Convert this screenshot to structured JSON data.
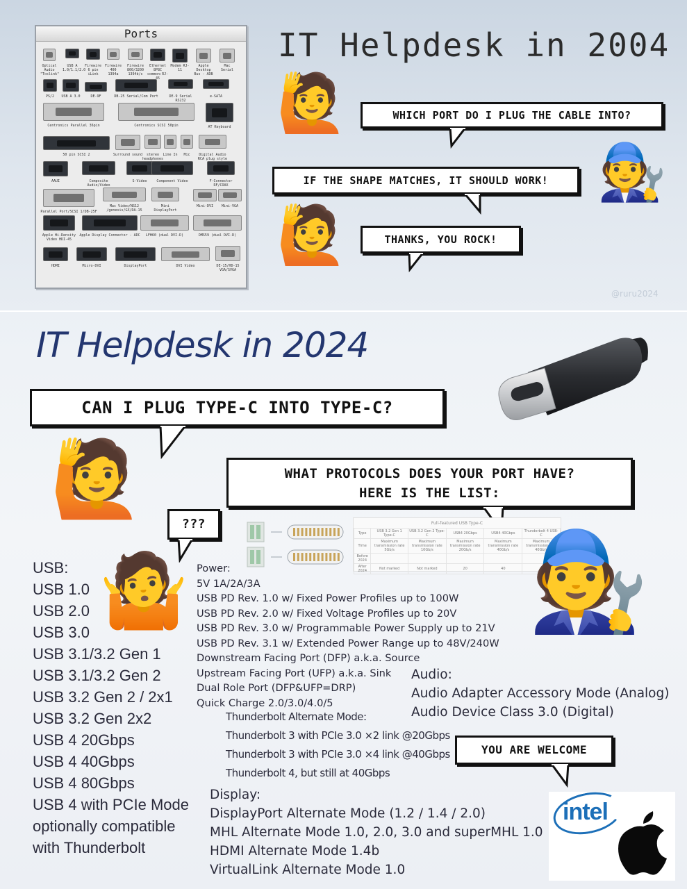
{
  "section_2004": {
    "title": "IT Helpdesk in 2004",
    "ports_panel": {
      "title": "Ports",
      "ports": [
        {
          "label": "Optical Audio \"Toslink\""
        },
        {
          "label": "USB A 1.0/1.1/2.0"
        },
        {
          "label": "Firewire 6 pin iLink"
        },
        {
          "label": "Firewire 400 1394a"
        },
        {
          "label": "Firewire 800/3200 1394b/c"
        },
        {
          "label": "Ethernet 8P8C common:RJ-45"
        },
        {
          "label": "Modem RJ-11"
        },
        {
          "label": "Apple Desktop Bus - ADB"
        },
        {
          "label": "Mac Serial"
        },
        {
          "label": "PS/2"
        },
        {
          "label": "USB A 3.0"
        },
        {
          "label": "DE-9F"
        },
        {
          "label": "DB-25 Serial/Com Port"
        },
        {
          "label": "DE-9 Serial RS232"
        },
        {
          "label": "e-SATA"
        },
        {
          "label": "Centronics Parallel 36pin"
        },
        {
          "label": "Centronics SCSI 50pin"
        },
        {
          "label": "AT Keyboard"
        },
        {
          "label": "50 pin SCSI 2"
        },
        {
          "label": "Surround sound"
        },
        {
          "label": "stereo headphones"
        },
        {
          "label": "Line In"
        },
        {
          "label": "Mic"
        },
        {
          "label": "Digital Audio RCA plug style"
        },
        {
          "label": "AAUI"
        },
        {
          "label": "Composite Audio/Video"
        },
        {
          "label": "S-Video"
        },
        {
          "label": "Component Video"
        },
        {
          "label": "F-Connector RF/COAX"
        },
        {
          "label": "Parallel Port/SCSI 1/DB-25F"
        },
        {
          "label": "Mac Video/NS12 /genesis/GX/DA-15"
        },
        {
          "label": "Mini DisplayPort"
        },
        {
          "label": "Mini-DVI"
        },
        {
          "label": "Mini-VGA"
        },
        {
          "label": "Apple Hi-Density Video HDI-45"
        },
        {
          "label": "Apple Display Connector - ADC"
        },
        {
          "label": "LFH60 (dual DVI-D)"
        },
        {
          "label": "DMS59 (dual DVI-D)"
        },
        {
          "label": "HDMI"
        },
        {
          "label": "Micro-DVI"
        },
        {
          "label": "DisplayPort"
        },
        {
          "label": "DVI Video"
        },
        {
          "label": "DE-15/HD-15 VGA/SVGA"
        }
      ]
    },
    "bubbles": {
      "q1": "WHICH PORT DO I PLUG THE CABLE INTO?",
      "a1": "IF THE SHAPE MATCHES, IT SHOULD WORK!",
      "q2": "THANKS, YOU ROCK!"
    },
    "watermark": "@ruru2024",
    "emoji": {
      "raise": "🙋",
      "mechanic": "🧑‍🔧"
    }
  },
  "section_2024": {
    "title": "IT Helpdesk in 2024",
    "bubbles": {
      "q1": "CAN I PLUG TYPE-C INTO TYPE-C?",
      "a1_line1": "WHAT PROTOCOLS DOES YOUR PORT HAVE?",
      "a1_line2": "HERE IS THE LIST:",
      "confused": "???",
      "welcome": "YOU ARE WELCOME"
    },
    "emoji": {
      "raise": "🙋",
      "shrug": "🤷",
      "mechanic": "🧑‍🔧"
    },
    "usb_list": [
      "USB:",
      "USB 1.0",
      "USB 2.0",
      "USB 3.0",
      "USB 3.1/3.2 Gen 1",
      "USB 3.1/3.2 Gen 2",
      "USB 3.2 Gen 2 / 2x1",
      "USB 3.2 Gen 2x2",
      "USB 4 20Gbps",
      "USB 4 40Gbps",
      "USB 4 80Gbps",
      "USB 4 with PCIe Mode",
      "optionally compatible",
      "with Thunderbolt"
    ],
    "power_list": [
      "Power:",
      "5V 1A/2A/3A",
      "USB PD Rev. 1.0 w/ Fixed Power Profiles up to 100W",
      "USB PD Rev. 2.0 w/ Fixed Voltage Profiles up to 20V",
      "USB PD Rev. 3.0 w/ Programmable Power Supply up to 21V",
      "USB PD Rev. 3.1 w/ Extended Power Range up to 48V/240W",
      "Downstream Facing Port (DFP) a.k.a. Source",
      "Upstream Facing Port (UFP) a.k.a. Sink",
      "Dual Role Port (DFP&UFP=DRP)",
      "Quick Charge 2.0/3.0/4.0/5"
    ],
    "thunderbolt_list": [
      "Thunderbolt Alternate Mode:",
      "Thunderbolt 3 with PCIe 3.0 ×2 link @20Gbps",
      "Thunderbolt 3 with PCIe 3.0 ×4 link @40Gbps",
      "Thunderbolt 4, but still at 40Gbps"
    ],
    "display_list": [
      "Display:",
      "DisplayPort Alternate Mode (1.2 / 1.4 / 2.0)",
      "MHL Alternate Mode 1.0, 2.0, 3.0 and superMHL 1.0",
      "HDMI Alternate Mode 1.4b",
      "VirtualLink Alternate Mode 1.0"
    ],
    "audio_list": [
      "Audio:",
      "Audio Adapter Accessory Mode (Analog)",
      "Audio Device Class 3.0 (Digital)"
    ],
    "usb_table": {
      "title": "Full-featured USB Type-C",
      "headers": [
        "Type",
        "USB 3.2 Gen 1 Type-C",
        "USB 3.2 Gen 2 Type-C",
        "USB4 20Gbps",
        "USB4 40Gbps",
        "Thunderbolt 4 USB-C"
      ],
      "rows": [
        [
          "Time",
          "Maximum transmission rate 5Gb/s",
          "Maximum transmission rate 10Gb/s",
          "Maximum transmission rate 20Gb/s",
          "Maximum transmission rate 40Gb/s",
          "Maximum transmission rate 40Gb/s"
        ],
        [
          "Before 2024",
          "",
          "",
          "",
          "",
          ""
        ],
        [
          "After 2024",
          "Not marked",
          "Not marked",
          "20",
          "40",
          ""
        ]
      ]
    },
    "logos": {
      "intel": "intel",
      "apple": "apple-logo"
    }
  },
  "colors": {
    "title_2024": "#23366f",
    "intel_blue": "#1c6fb8"
  }
}
